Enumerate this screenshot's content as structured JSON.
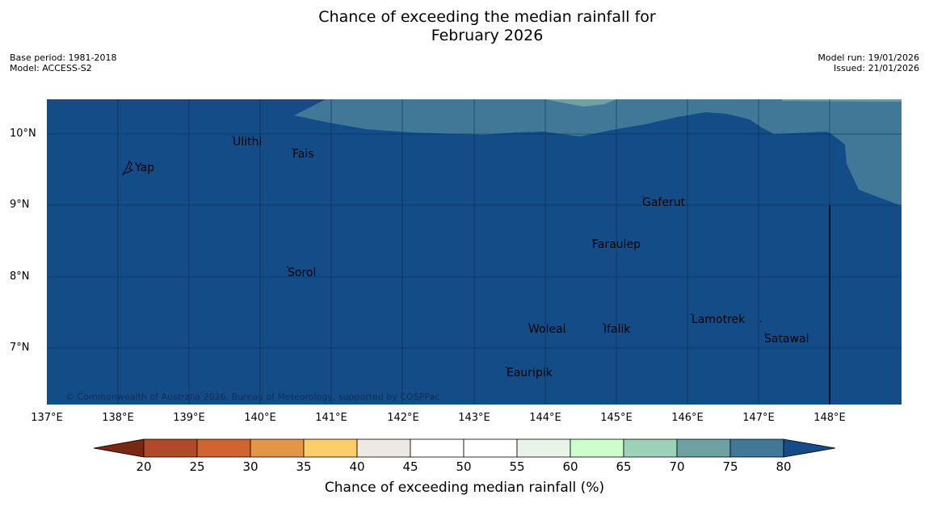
{
  "title": {
    "line1": "Chance of exceeding the median rainfall for",
    "line2": "February 2026"
  },
  "meta": {
    "base_period": "Base period: 1981-2018",
    "model": "Model: ACCESS-S2",
    "model_run": "Model run: 19/01/2026",
    "issued": "Issued: 21/01/2026"
  },
  "map": {
    "lat_labels": [
      "10°N",
      "9°N",
      "8°N",
      "7°N"
    ],
    "lon_labels": [
      "137°E",
      "138°E",
      "139°E",
      "140°E",
      "141°E",
      "142°E",
      "143°E",
      "144°E",
      "145°E",
      "146°E",
      "147°E",
      "148°E"
    ],
    "places": [
      "Yap",
      "Ulithi",
      "Fais",
      "Gaferut",
      "Faraulep",
      "Sorol",
      "Woleai",
      "Ifalik",
      "Lamotrek",
      "Satawal",
      "Eauripik"
    ],
    "copyright": "© Commonwealth of Australia 2026, Bureau of Meteorology, supported by COSPPac"
  },
  "colorbar": {
    "ticks": [
      "20",
      "25",
      "30",
      "35",
      "40",
      "45",
      "50",
      "55",
      "60",
      "65",
      "70",
      "75",
      "80"
    ],
    "colors": [
      "#7a2814",
      "#b04a28",
      "#d06430",
      "#e39548",
      "#fdcd6a",
      "#ede8e3",
      "#ffffff",
      "#ffffff",
      "#e8f4e8",
      "#ccffcc",
      "#9ed1b9",
      "#6ea1a1",
      "#417897",
      "#144c88"
    ],
    "label": "Chance of exceeding median rainfall (%)"
  }
}
